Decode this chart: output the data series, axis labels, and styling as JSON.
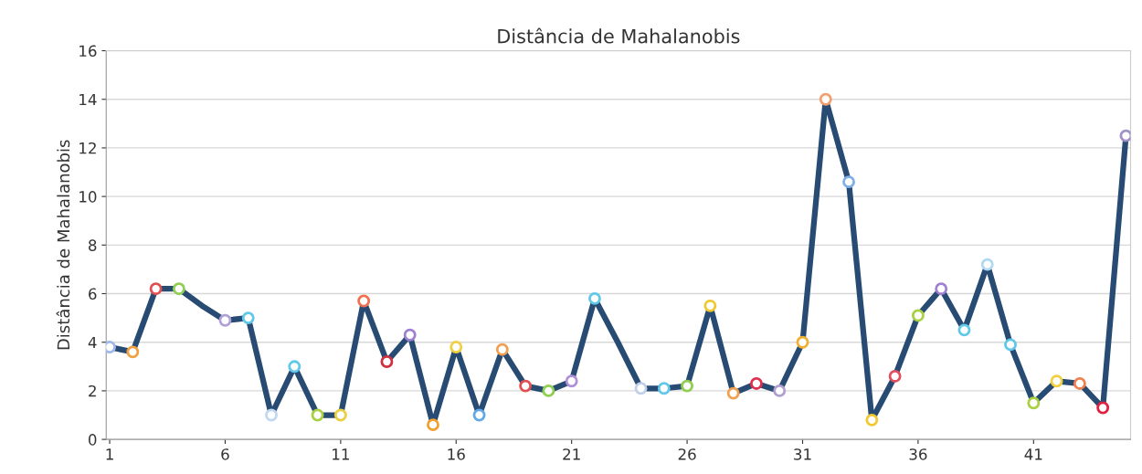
{
  "chart_data": {
    "type": "line",
    "title": "Distância de Mahalanobis",
    "ylabel": "Distância de Mahalanobis",
    "x": [
      1,
      2,
      3,
      4,
      5,
      6,
      7,
      8,
      9,
      10,
      11,
      12,
      13,
      14,
      15,
      16,
      17,
      18,
      19,
      20,
      21,
      22,
      23,
      24,
      25,
      26,
      27,
      28,
      29,
      30,
      31,
      32,
      33,
      34,
      35,
      36,
      37,
      38,
      39,
      40,
      41,
      42,
      43,
      44,
      45
    ],
    "series": [
      {
        "color": "#274b73",
        "values": [
          3.8,
          3.6,
          6.2,
          6.2,
          5.5,
          4.9,
          5.0,
          1.0,
          3.0,
          1.0,
          1.0,
          5.7,
          3.2,
          4.3,
          0.6,
          3.8,
          1.0,
          3.7,
          2.2,
          2.0,
          2.4,
          5.8,
          4.0,
          2.1,
          2.1,
          2.2,
          5.5,
          1.9,
          2.3,
          2.0,
          4.0,
          14.0,
          10.6,
          0.8,
          2.6,
          5.1,
          6.2,
          4.5,
          7.2,
          3.9,
          1.5,
          2.4,
          2.3,
          1.3,
          12.5
        ],
        "colors": [
          "#9fb8e8",
          "#f0a040",
          "#e05050",
          "#8fce4f",
          null,
          "#b0a0d8",
          "#60c8e8",
          "#c0d8f0",
          "#60c8e8",
          "#a8d040",
          "#e8d040",
          "#f07050",
          "#d03040",
          "#a080d0",
          "#f0a030",
          "#f0d040",
          "#60a8e8",
          "#f0a050",
          "#e05050",
          "#8fce4f",
          "#b090d8",
          "#60c8e8",
          null,
          "#c0d0e8",
          "#60c8e8",
          "#8fce4f",
          "#f0c830",
          "#f0a050",
          "#e03050",
          "#b0a0d0",
          "#f0b030",
          "#f0a070",
          "#80b0e8",
          "#f0c830",
          "#e05060",
          "#a8d040",
          "#a080d0",
          "#60c8e8",
          "#b0d8f0",
          "#60c8e8",
          "#a8d040",
          "#f0d040",
          "#f08050",
          "#e02040",
          "#a090c8"
        ]
      }
    ],
    "xlim": [
      0.85,
      45.2
    ],
    "xticks": [
      1,
      6,
      11,
      16,
      21,
      26,
      31,
      36,
      41
    ],
    "ylim": [
      0,
      16
    ],
    "yticks": [
      0,
      2,
      4,
      6,
      8,
      10,
      12,
      14,
      16
    ],
    "grid": "y",
    "marker": "circle",
    "line_style": "solid",
    "legend": false
  }
}
